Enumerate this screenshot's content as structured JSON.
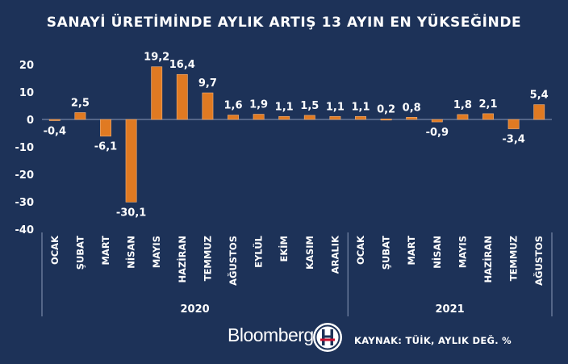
{
  "colors": {
    "background": "#1d3258",
    "bar": "#e07a22",
    "text": "#ffffff"
  },
  "chart_data": {
    "type": "bar",
    "title": "SANAYİ ÜRETİMİNDE AYLIK ARTIŞ 13 AYIN EN YÜKSEĞİNDE",
    "categories": [
      "OCAK",
      "ŞUBAT",
      "MART",
      "NİSAN",
      "MAYIS",
      "HAZİRAN",
      "TEMMUZ",
      "AĞUSTOS",
      "EYLÜL",
      "EKİM",
      "KASIM",
      "ARALIK",
      "OCAK",
      "ŞUBAT",
      "MART",
      "NİSAN",
      "MAYIS",
      "HAZİRAN",
      "TEMMUZ",
      "AĞUSTOS"
    ],
    "values": [
      -0.4,
      2.5,
      -6.1,
      -30.1,
      19.2,
      16.4,
      9.7,
      1.6,
      1.9,
      1.1,
      1.5,
      1.1,
      1.1,
      0.2,
      0.8,
      -0.9,
      1.8,
      2.1,
      -3.4,
      5.4
    ],
    "value_labels": [
      "-0,4",
      "2,5",
      "-6,1",
      "-30,1",
      "19,2",
      "16,4",
      "9,7",
      "1,6",
      "1,9",
      "1,1",
      "1,5",
      "1,1",
      "1,1",
      "0,2",
      "0,8",
      "-0,9",
      "1,8",
      "2,1",
      "-3,4",
      "5,4"
    ],
    "groups": [
      {
        "label": "2020",
        "count": 12
      },
      {
        "label": "2021",
        "count": 8
      }
    ],
    "yticks": [
      20,
      10,
      0,
      -10,
      -20,
      -30,
      -40
    ],
    "ylim": [
      -40,
      20
    ],
    "grid": false,
    "legend": "none"
  },
  "footer": {
    "brand": "Bloomberg",
    "logo_letters": "HT",
    "source": "KAYNAK: TÜİK, AYLIK DEĞ. %"
  }
}
